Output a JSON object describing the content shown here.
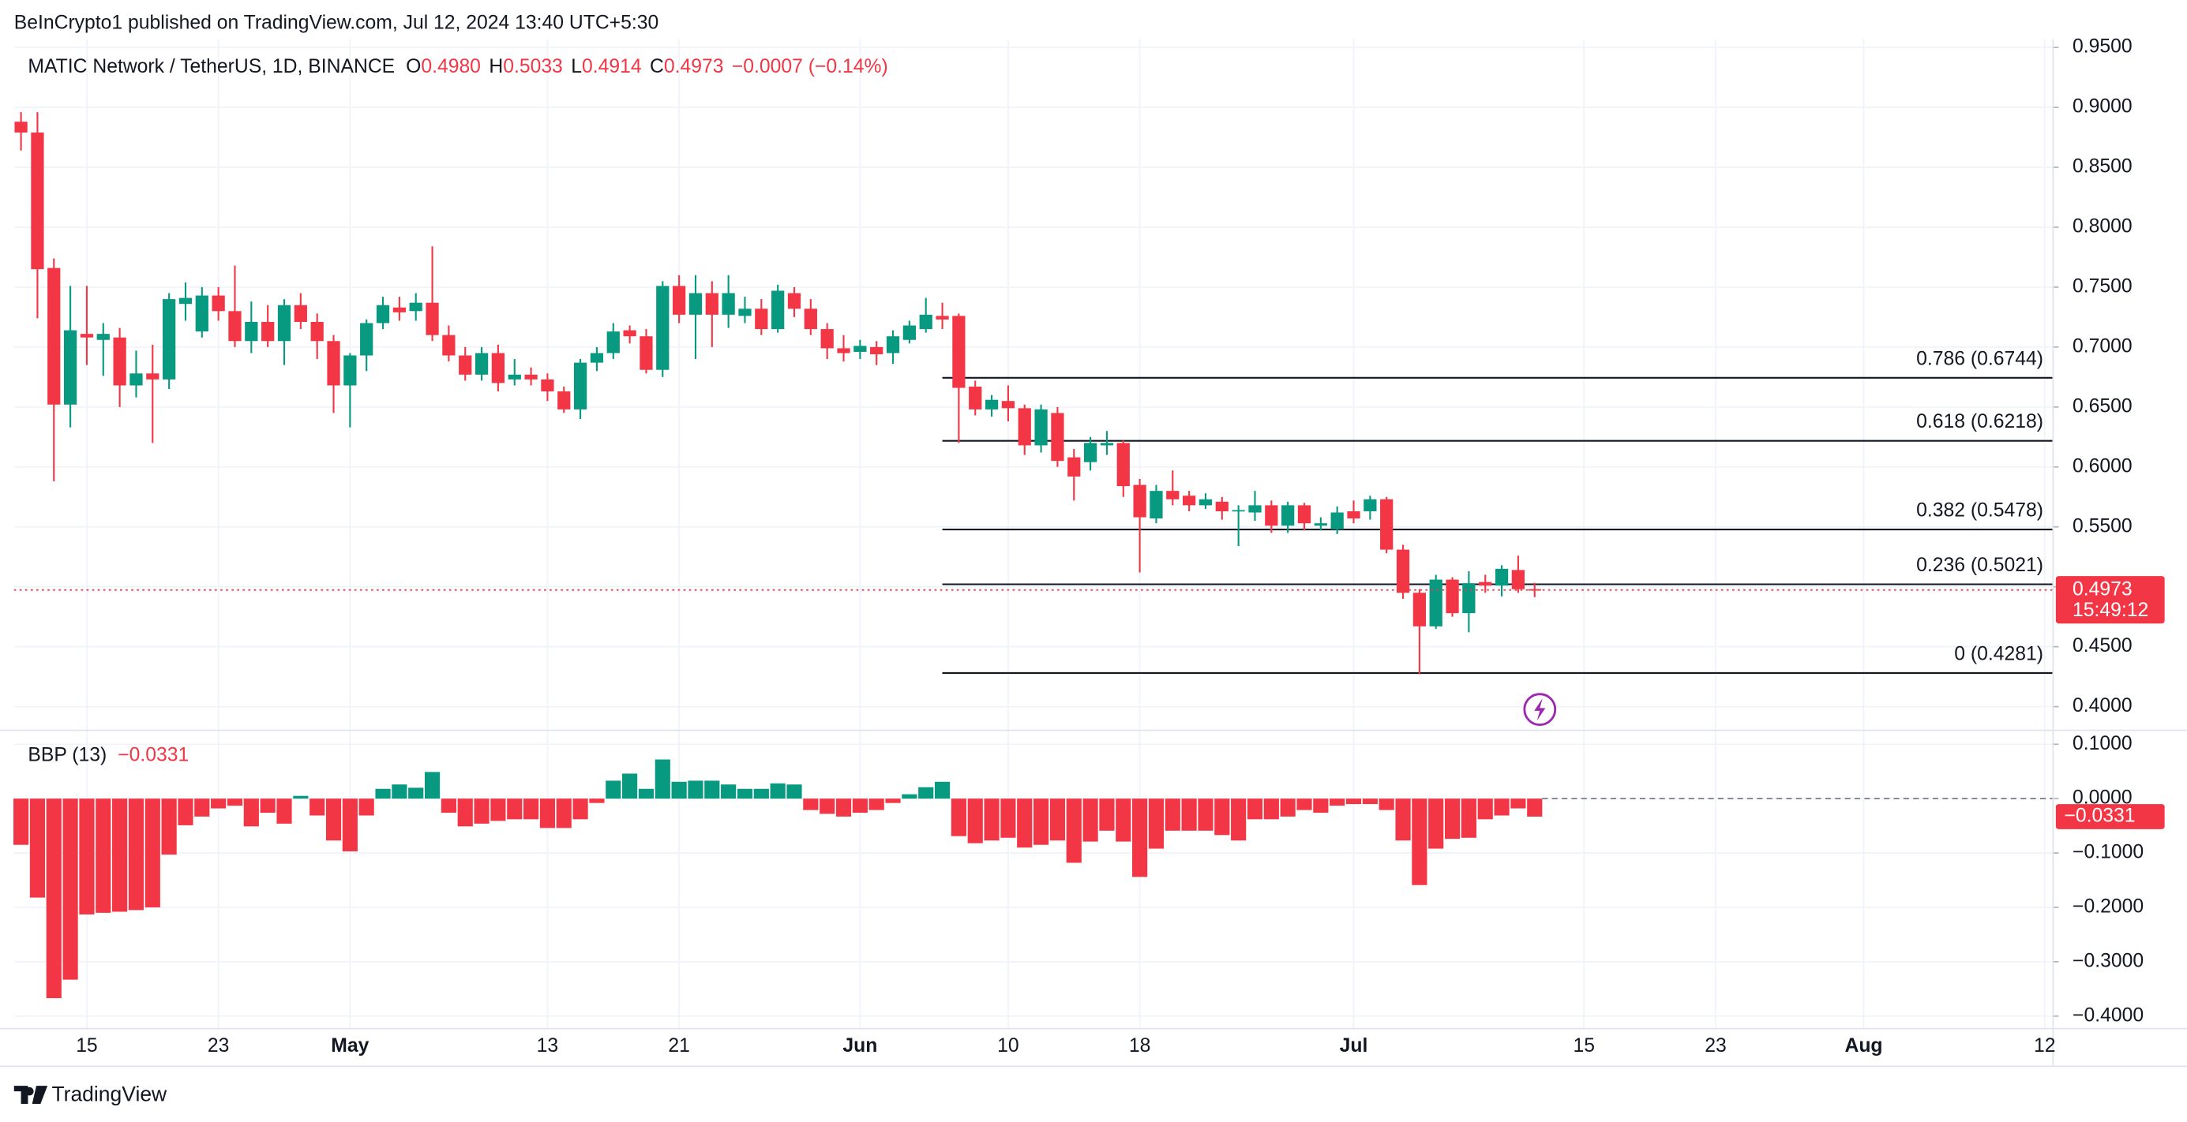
{
  "header": "BeInCrypto1 published on TradingView.com, Jul 12, 2024 13:40 UTC+5:30",
  "brand": "TradingView",
  "chart_data": [
    {
      "type": "candlestick",
      "legend": {
        "symbol": "MATIC Network / TetherUS, 1D, BINANCE",
        "fields": [
          {
            "key": "O",
            "value": "0.4980"
          },
          {
            "key": "H",
            "value": "0.5033"
          },
          {
            "key": "L",
            "value": "0.4914"
          },
          {
            "key": "C",
            "value": "0.4973"
          }
        ],
        "change": "−0.0007 (−0.14%)"
      },
      "x": [
        "2024-04-11",
        "2024-04-12",
        "2024-04-13",
        "2024-04-14",
        "2024-04-15",
        "2024-04-16",
        "2024-04-17",
        "2024-04-18",
        "2024-04-19",
        "2024-04-20",
        "2024-04-21",
        "2024-04-22",
        "2024-04-23",
        "2024-04-24",
        "2024-04-25",
        "2024-04-26",
        "2024-04-27",
        "2024-04-28",
        "2024-04-29",
        "2024-04-30",
        "2024-05-01",
        "2024-05-02",
        "2024-05-03",
        "2024-05-04",
        "2024-05-05",
        "2024-05-06",
        "2024-05-07",
        "2024-05-08",
        "2024-05-09",
        "2024-05-10",
        "2024-05-11",
        "2024-05-12",
        "2024-05-13",
        "2024-05-14",
        "2024-05-15",
        "2024-05-16",
        "2024-05-17",
        "2024-05-18",
        "2024-05-19",
        "2024-05-20",
        "2024-05-21",
        "2024-05-22",
        "2024-05-23",
        "2024-05-24",
        "2024-05-25",
        "2024-05-26",
        "2024-05-27",
        "2024-05-28",
        "2024-05-29",
        "2024-05-30",
        "2024-05-31",
        "2024-06-01",
        "2024-06-02",
        "2024-06-03",
        "2024-06-04",
        "2024-06-05",
        "2024-06-06",
        "2024-06-07",
        "2024-06-08",
        "2024-06-09",
        "2024-06-10",
        "2024-06-11",
        "2024-06-12",
        "2024-06-13",
        "2024-06-14",
        "2024-06-15",
        "2024-06-16",
        "2024-06-17",
        "2024-06-18",
        "2024-06-19",
        "2024-06-20",
        "2024-06-21",
        "2024-06-22",
        "2024-06-23",
        "2024-06-24",
        "2024-06-25",
        "2024-06-26",
        "2024-06-27",
        "2024-06-28",
        "2024-06-29",
        "2024-06-30",
        "2024-07-01",
        "2024-07-02",
        "2024-07-03",
        "2024-07-04",
        "2024-07-05",
        "2024-07-06",
        "2024-07-07",
        "2024-07-08",
        "2024-07-09",
        "2024-07-10",
        "2024-07-11",
        "2024-07-12"
      ],
      "open": [
        0.888,
        0.879,
        0.766,
        0.652,
        0.711,
        0.706,
        0.708,
        0.668,
        0.678,
        0.673,
        0.736,
        0.713,
        0.743,
        0.73,
        0.705,
        0.721,
        0.705,
        0.735,
        0.721,
        0.705,
        0.668,
        0.693,
        0.72,
        0.733,
        0.73,
        0.737,
        0.71,
        0.693,
        0.677,
        0.695,
        0.673,
        0.677,
        0.673,
        0.663,
        0.648,
        0.687,
        0.695,
        0.714,
        0.709,
        0.681,
        0.751,
        0.727,
        0.745,
        0.727,
        0.726,
        0.732,
        0.715,
        0.745,
        0.732,
        0.715,
        0.699,
        0.696,
        0.7,
        0.695,
        0.706,
        0.715,
        0.726,
        0.726,
        0.667,
        0.648,
        0.655,
        0.649,
        0.618,
        0.645,
        0.608,
        0.604,
        0.618,
        0.62,
        0.585,
        0.557,
        0.58,
        0.576,
        0.568,
        0.571,
        0.563,
        0.562,
        0.568,
        0.551,
        0.568,
        0.551,
        0.548,
        0.563,
        0.563,
        0.573,
        0.531,
        0.495,
        0.467,
        0.506,
        0.478,
        0.504,
        0.501,
        0.514,
        0.498
      ],
      "high": [
        0.896,
        0.896,
        0.774,
        0.751,
        0.751,
        0.72,
        0.716,
        0.697,
        0.702,
        0.745,
        0.754,
        0.75,
        0.75,
        0.768,
        0.738,
        0.735,
        0.74,
        0.745,
        0.728,
        0.71,
        0.695,
        0.723,
        0.742,
        0.742,
        0.745,
        0.784,
        0.718,
        0.7,
        0.7,
        0.702,
        0.69,
        0.683,
        0.678,
        0.667,
        0.69,
        0.7,
        0.72,
        0.718,
        0.715,
        0.755,
        0.76,
        0.76,
        0.755,
        0.76,
        0.742,
        0.74,
        0.752,
        0.75,
        0.74,
        0.72,
        0.71,
        0.706,
        0.705,
        0.714,
        0.722,
        0.741,
        0.737,
        0.728,
        0.672,
        0.66,
        0.668,
        0.652,
        0.652,
        0.65,
        0.615,
        0.625,
        0.63,
        0.622,
        0.59,
        0.585,
        0.597,
        0.58,
        0.578,
        0.575,
        0.568,
        0.58,
        0.572,
        0.571,
        0.57,
        0.558,
        0.567,
        0.572,
        0.576,
        0.575,
        0.535,
        0.498,
        0.51,
        0.508,
        0.513,
        0.51,
        0.518,
        0.526,
        0.5033
      ],
      "low": [
        0.864,
        0.724,
        0.588,
        0.633,
        0.685,
        0.676,
        0.65,
        0.658,
        0.62,
        0.665,
        0.722,
        0.708,
        0.722,
        0.7,
        0.695,
        0.7,
        0.685,
        0.715,
        0.69,
        0.645,
        0.633,
        0.68,
        0.715,
        0.722,
        0.722,
        0.705,
        0.688,
        0.672,
        0.672,
        0.663,
        0.668,
        0.668,
        0.655,
        0.645,
        0.64,
        0.68,
        0.69,
        0.703,
        0.678,
        0.675,
        0.72,
        0.69,
        0.7,
        0.716,
        0.72,
        0.71,
        0.712,
        0.725,
        0.71,
        0.69,
        0.688,
        0.69,
        0.685,
        0.686,
        0.703,
        0.712,
        0.715,
        0.62,
        0.643,
        0.642,
        0.638,
        0.61,
        0.612,
        0.6,
        0.572,
        0.597,
        0.61,
        0.575,
        0.512,
        0.553,
        0.568,
        0.563,
        0.565,
        0.556,
        0.534,
        0.555,
        0.545,
        0.545,
        0.547,
        0.547,
        0.544,
        0.553,
        0.556,
        0.528,
        0.49,
        0.427,
        0.465,
        0.475,
        0.462,
        0.495,
        0.492,
        0.495,
        0.4914
      ],
      "close": [
        0.879,
        0.765,
        0.652,
        0.714,
        0.708,
        0.711,
        0.668,
        0.678,
        0.673,
        0.74,
        0.741,
        0.743,
        0.73,
        0.705,
        0.721,
        0.705,
        0.735,
        0.721,
        0.705,
        0.668,
        0.693,
        0.72,
        0.735,
        0.729,
        0.737,
        0.71,
        0.693,
        0.677,
        0.695,
        0.67,
        0.677,
        0.673,
        0.663,
        0.648,
        0.687,
        0.695,
        0.713,
        0.709,
        0.681,
        0.751,
        0.727,
        0.745,
        0.727,
        0.745,
        0.732,
        0.715,
        0.747,
        0.732,
        0.715,
        0.699,
        0.695,
        0.701,
        0.694,
        0.709,
        0.718,
        0.727,
        0.723,
        0.666,
        0.648,
        0.656,
        0.649,
        0.618,
        0.648,
        0.605,
        0.592,
        0.62,
        0.62,
        0.584,
        0.558,
        0.58,
        0.573,
        0.568,
        0.573,
        0.563,
        0.564,
        0.568,
        0.551,
        0.568,
        0.553,
        0.553,
        0.562,
        0.557,
        0.573,
        0.531,
        0.495,
        0.467,
        0.506,
        0.478,
        0.503,
        0.501,
        0.515,
        0.498,
        0.4973
      ],
      "close_label": "0.4973",
      "countdown": "15:49:12",
      "up_color": "#089981",
      "down_color": "#f23645",
      "fib_from": "2024-06-06",
      "fib_levels": [
        {
          "value": 0.6744,
          "label": "0.786 (0.6744)"
        },
        {
          "value": 0.6218,
          "label": "0.618 (0.6218)"
        },
        {
          "value": 0.5478,
          "label": "0.382 (0.5478)"
        },
        {
          "value": 0.5021,
          "label": "0.236 (0.5021)"
        },
        {
          "value": 0.4281,
          "label": "0 (0.4281)"
        }
      ],
      "xlim": [
        "2024-04-10",
        "2024-08-13"
      ],
      "xticks": [
        {
          "value": "2024-04-15",
          "label": "15"
        },
        {
          "value": "2024-04-23",
          "label": "23"
        },
        {
          "value": "2024-05-01",
          "label": "May"
        },
        {
          "value": "2024-05-13",
          "label": "13"
        },
        {
          "value": "2024-05-21",
          "label": "21"
        },
        {
          "value": "2024-06-01",
          "label": "Jun"
        },
        {
          "value": "2024-06-10",
          "label": "10"
        },
        {
          "value": "2024-06-18",
          "label": "18"
        },
        {
          "value": "2024-07-01",
          "label": "Jul"
        },
        {
          "value": "2024-07-15",
          "label": "15"
        },
        {
          "value": "2024-07-23",
          "label": "23"
        },
        {
          "value": "2024-08-01",
          "label": "Aug"
        },
        {
          "value": "2024-08-12",
          "label": "12"
        }
      ],
      "ylim": [
        0.3814,
        0.957
      ],
      "yticks": [
        {
          "value": 0.95,
          "label": "0.9500"
        },
        {
          "value": 0.9,
          "label": "0.9000"
        },
        {
          "value": 0.85,
          "label": "0.8500"
        },
        {
          "value": 0.8,
          "label": "0.8000"
        },
        {
          "value": 0.75,
          "label": "0.7500"
        },
        {
          "value": 0.7,
          "label": "0.7000"
        },
        {
          "value": 0.65,
          "label": "0.6500"
        },
        {
          "value": 0.6,
          "label": "0.6000"
        },
        {
          "value": 0.55,
          "label": "0.5500"
        },
        {
          "value": 0.5,
          "label": "0.5000"
        },
        {
          "value": 0.45,
          "label": "0.4500"
        },
        {
          "value": 0.4,
          "label": "0.4000"
        }
      ],
      "grid": true
    },
    {
      "type": "bar",
      "title": "BBP (13)",
      "last_label": "−0.0331",
      "x": [
        "2024-04-11",
        "2024-04-12",
        "2024-04-13",
        "2024-04-14",
        "2024-04-15",
        "2024-04-16",
        "2024-04-17",
        "2024-04-18",
        "2024-04-19",
        "2024-04-20",
        "2024-04-21",
        "2024-04-22",
        "2024-04-23",
        "2024-04-24",
        "2024-04-25",
        "2024-04-26",
        "2024-04-27",
        "2024-04-28",
        "2024-04-29",
        "2024-04-30",
        "2024-05-01",
        "2024-05-02",
        "2024-05-03",
        "2024-05-04",
        "2024-05-05",
        "2024-05-06",
        "2024-05-07",
        "2024-05-08",
        "2024-05-09",
        "2024-05-10",
        "2024-05-11",
        "2024-05-12",
        "2024-05-13",
        "2024-05-14",
        "2024-05-15",
        "2024-05-16",
        "2024-05-17",
        "2024-05-18",
        "2024-05-19",
        "2024-05-20",
        "2024-05-21",
        "2024-05-22",
        "2024-05-23",
        "2024-05-24",
        "2024-05-25",
        "2024-05-26",
        "2024-05-27",
        "2024-05-28",
        "2024-05-29",
        "2024-05-30",
        "2024-05-31",
        "2024-06-01",
        "2024-06-02",
        "2024-06-03",
        "2024-06-04",
        "2024-06-05",
        "2024-06-06",
        "2024-06-07",
        "2024-06-08",
        "2024-06-09",
        "2024-06-10",
        "2024-06-11",
        "2024-06-12",
        "2024-06-13",
        "2024-06-14",
        "2024-06-15",
        "2024-06-16",
        "2024-06-17",
        "2024-06-18",
        "2024-06-19",
        "2024-06-20",
        "2024-06-21",
        "2024-06-22",
        "2024-06-23",
        "2024-06-24",
        "2024-06-25",
        "2024-06-26",
        "2024-06-27",
        "2024-06-28",
        "2024-06-29",
        "2024-06-30",
        "2024-07-01",
        "2024-07-02",
        "2024-07-03",
        "2024-07-04",
        "2024-07-05",
        "2024-07-06",
        "2024-07-07",
        "2024-07-08",
        "2024-07-09",
        "2024-07-10",
        "2024-07-11",
        "2024-07-12"
      ],
      "values": [
        -0.085,
        -0.182,
        -0.367,
        -0.333,
        -0.213,
        -0.21,
        -0.208,
        -0.205,
        -0.2,
        -0.103,
        -0.049,
        -0.033,
        -0.018,
        -0.013,
        -0.051,
        -0.026,
        -0.046,
        0.005,
        -0.031,
        -0.077,
        -0.097,
        -0.031,
        0.018,
        0.026,
        0.02,
        0.049,
        -0.026,
        -0.051,
        -0.046,
        -0.041,
        -0.038,
        -0.038,
        -0.054,
        -0.054,
        -0.038,
        -0.008,
        0.033,
        0.046,
        0.018,
        0.072,
        0.031,
        0.033,
        0.033,
        0.026,
        0.018,
        0.018,
        0.028,
        0.026,
        -0.021,
        -0.028,
        -0.033,
        -0.026,
        -0.021,
        -0.008,
        0.008,
        0.021,
        0.031,
        -0.069,
        -0.082,
        -0.077,
        -0.072,
        -0.09,
        -0.085,
        -0.077,
        -0.118,
        -0.079,
        -0.059,
        -0.079,
        -0.144,
        -0.092,
        -0.059,
        -0.059,
        -0.059,
        -0.067,
        -0.077,
        -0.038,
        -0.038,
        -0.033,
        -0.021,
        -0.026,
        -0.013,
        -0.01,
        -0.01,
        -0.021,
        -0.077,
        -0.159,
        -0.092,
        -0.074,
        -0.072,
        -0.038,
        -0.031,
        -0.018,
        -0.0331
      ],
      "up_color": "#089981",
      "down_color": "#f23645",
      "xlim": [
        "2024-04-10",
        "2024-08-13"
      ],
      "ylim": [
        -0.423,
        0.123
      ],
      "yticks": [
        {
          "value": 0.1,
          "label": "0.1000"
        },
        {
          "value": 0,
          "label": "0.0000"
        },
        {
          "value": -0.1,
          "label": "−0.1000"
        },
        {
          "value": -0.2,
          "label": "−0.2000"
        },
        {
          "value": -0.3,
          "label": "−0.3000"
        },
        {
          "value": -0.4,
          "label": "−0.4000"
        }
      ],
      "grid": true
    }
  ]
}
